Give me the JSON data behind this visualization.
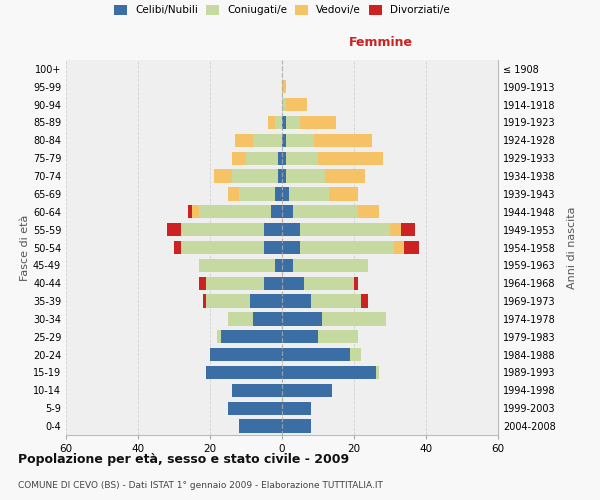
{
  "age_groups": [
    "0-4",
    "5-9",
    "10-14",
    "15-19",
    "20-24",
    "25-29",
    "30-34",
    "35-39",
    "40-44",
    "45-49",
    "50-54",
    "55-59",
    "60-64",
    "65-69",
    "70-74",
    "75-79",
    "80-84",
    "85-89",
    "90-94",
    "95-99",
    "100+"
  ],
  "birth_years": [
    "2004-2008",
    "1999-2003",
    "1994-1998",
    "1989-1993",
    "1984-1988",
    "1979-1983",
    "1974-1978",
    "1969-1973",
    "1964-1968",
    "1959-1963",
    "1954-1958",
    "1949-1953",
    "1944-1948",
    "1939-1943",
    "1934-1938",
    "1929-1933",
    "1924-1928",
    "1919-1923",
    "1914-1918",
    "1909-1913",
    "≤ 1908"
  ],
  "colors": {
    "celibi": "#3a6ea5",
    "coniugati": "#c5d9a0",
    "vedovi": "#f5c265",
    "divorziati": "#cc2222"
  },
  "male": {
    "celibi": [
      12,
      15,
      14,
      21,
      20,
      17,
      8,
      9,
      5,
      2,
      5,
      5,
      3,
      2,
      1,
      1,
      0,
      0,
      0,
      0,
      0
    ],
    "coniugati": [
      0,
      0,
      0,
      0,
      0,
      1,
      7,
      12,
      16,
      21,
      23,
      23,
      20,
      10,
      13,
      9,
      8,
      2,
      0,
      0,
      0
    ],
    "vedovi": [
      0,
      0,
      0,
      0,
      0,
      0,
      0,
      0,
      0,
      0,
      0,
      0,
      2,
      3,
      5,
      4,
      5,
      2,
      0,
      0,
      0
    ],
    "divorziati": [
      0,
      0,
      0,
      0,
      0,
      0,
      0,
      1,
      2,
      0,
      2,
      4,
      1,
      0,
      0,
      0,
      0,
      0,
      0,
      0,
      0
    ]
  },
  "female": {
    "celibi": [
      8,
      8,
      14,
      26,
      19,
      10,
      11,
      8,
      6,
      3,
      5,
      5,
      3,
      2,
      1,
      1,
      1,
      1,
      0,
      0,
      0
    ],
    "coniugati": [
      0,
      0,
      0,
      1,
      3,
      11,
      18,
      14,
      14,
      21,
      26,
      25,
      18,
      11,
      11,
      9,
      8,
      4,
      1,
      0,
      0
    ],
    "vedovi": [
      0,
      0,
      0,
      0,
      0,
      0,
      0,
      0,
      0,
      0,
      3,
      3,
      6,
      8,
      11,
      18,
      16,
      10,
      6,
      1,
      0
    ],
    "divorziati": [
      0,
      0,
      0,
      0,
      0,
      0,
      0,
      2,
      1,
      0,
      4,
      4,
      0,
      0,
      0,
      0,
      0,
      0,
      0,
      0,
      0
    ]
  },
  "xlim": 60,
  "title": "Popolazione per età, sesso e stato civile - 2009",
  "subtitle": "COMUNE DI CEVO (BS) - Dati ISTAT 1° gennaio 2009 - Elaborazione TUTTITALIA.IT",
  "ylabel_left": "Fasce di età",
  "ylabel_right": "Anni di nascita",
  "xlabel_right": "Femmine",
  "legend_labels": [
    "Celibi/Nubili",
    "Coniugati/e",
    "Vedovi/e",
    "Divorziati/e"
  ],
  "bg_color": "#f8f8f8",
  "plot_bg_color": "#efefef"
}
